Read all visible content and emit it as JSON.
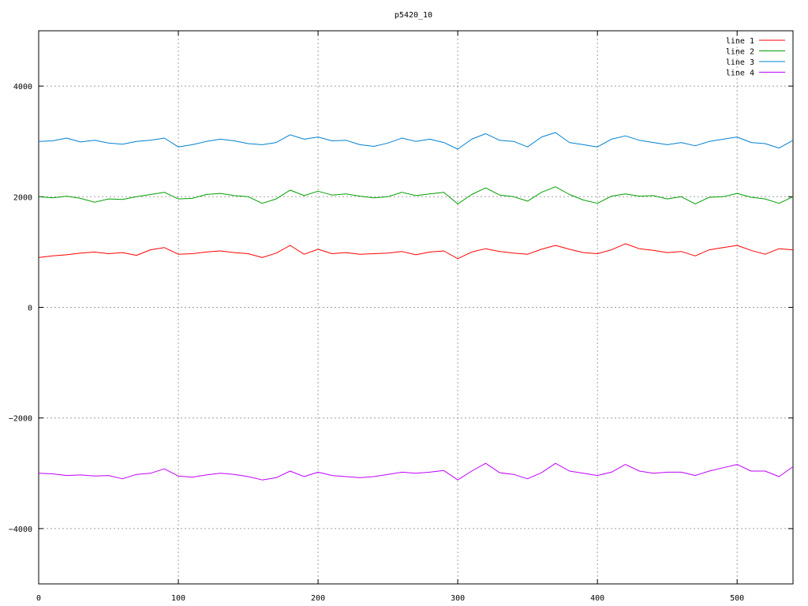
{
  "chart_data": {
    "type": "line",
    "title": "p5420_10",
    "xlabel": "",
    "ylabel": "",
    "xlim": [
      0,
      540
    ],
    "ylim": [
      -5000,
      5000
    ],
    "xticks": [
      0,
      100,
      200,
      300,
      400,
      500
    ],
    "yticks": [
      -4000,
      -2000,
      0,
      2000,
      4000
    ],
    "grid": true,
    "legend_position": "top-right",
    "series": [
      {
        "name": "line 1",
        "color": "#ff0000",
        "x": [
          0,
          10,
          20,
          30,
          40,
          50,
          60,
          70,
          80,
          90,
          100,
          110,
          120,
          130,
          140,
          150,
          160,
          170,
          180,
          190,
          200,
          210,
          220,
          230,
          240,
          250,
          260,
          270,
          280,
          290,
          300,
          310,
          320,
          330,
          340,
          350,
          360,
          370,
          380,
          390,
          400,
          410,
          420,
          430,
          440,
          450,
          460,
          470,
          480,
          490,
          500,
          510,
          520,
          530,
          540
        ],
        "y": [
          900,
          930,
          950,
          980,
          1000,
          970,
          990,
          940,
          1040,
          1080,
          960,
          970,
          1000,
          1020,
          990,
          970,
          900,
          980,
          1120,
          960,
          1050,
          970,
          990,
          960,
          970,
          980,
          1010,
          950,
          1000,
          1020,
          880,
          1000,
          1060,
          1010,
          980,
          960,
          1050,
          1120,
          1050,
          990,
          970,
          1040,
          1150,
          1060,
          1030,
          990,
          1010,
          930,
          1040,
          1080,
          1120,
          1030,
          960,
          1060,
          1040
        ]
      },
      {
        "name": "line 2",
        "color": "#00a000",
        "x": [
          0,
          10,
          20,
          30,
          40,
          50,
          60,
          70,
          80,
          90,
          100,
          110,
          120,
          130,
          140,
          150,
          160,
          170,
          180,
          190,
          200,
          210,
          220,
          230,
          240,
          250,
          260,
          270,
          280,
          290,
          300,
          310,
          320,
          330,
          340,
          350,
          360,
          370,
          380,
          390,
          400,
          410,
          420,
          430,
          440,
          450,
          460,
          470,
          480,
          490,
          500,
          510,
          520,
          530,
          540
        ],
        "y": [
          2000,
          1980,
          2010,
          1970,
          1900,
          1960,
          1950,
          2000,
          2040,
          2080,
          1960,
          1970,
          2040,
          2060,
          2020,
          2000,
          1880,
          1960,
          2120,
          2020,
          2100,
          2030,
          2050,
          2010,
          1980,
          2000,
          2080,
          2020,
          2050,
          2080,
          1870,
          2040,
          2160,
          2030,
          2000,
          1920,
          2080,
          2180,
          2040,
          1940,
          1880,
          2010,
          2050,
          2010,
          2020,
          1960,
          2000,
          1870,
          1990,
          2000,
          2060,
          1990,
          1960,
          1880,
          2000
        ]
      },
      {
        "name": "line 3",
        "color": "#0080d0",
        "x": [
          0,
          10,
          20,
          30,
          40,
          50,
          60,
          70,
          80,
          90,
          100,
          110,
          120,
          130,
          140,
          150,
          160,
          170,
          180,
          190,
          200,
          210,
          220,
          230,
          240,
          250,
          260,
          270,
          280,
          290,
          300,
          310,
          320,
          330,
          340,
          350,
          360,
          370,
          380,
          390,
          400,
          410,
          420,
          430,
          440,
          450,
          460,
          470,
          480,
          490,
          500,
          510,
          520,
          530,
          540
        ],
        "y": [
          3000,
          3010,
          3060,
          2990,
          3020,
          2970,
          2950,
          3000,
          3020,
          3060,
          2900,
          2940,
          3000,
          3040,
          3010,
          2960,
          2940,
          2980,
          3120,
          3040,
          3080,
          3010,
          3020,
          2940,
          2910,
          2970,
          3060,
          3000,
          3040,
          2980,
          2860,
          3040,
          3140,
          3020,
          3000,
          2900,
          3080,
          3160,
          2980,
          2940,
          2900,
          3040,
          3100,
          3020,
          2980,
          2940,
          2980,
          2920,
          3000,
          3040,
          3080,
          2980,
          2960,
          2880,
          3020
        ]
      },
      {
        "name": "line 4",
        "color": "#c000ff",
        "x": [
          0,
          10,
          20,
          30,
          40,
          50,
          60,
          70,
          80,
          90,
          100,
          110,
          120,
          130,
          140,
          150,
          160,
          170,
          180,
          190,
          200,
          210,
          220,
          230,
          240,
          250,
          260,
          270,
          280,
          290,
          300,
          310,
          320,
          330,
          340,
          350,
          360,
          370,
          380,
          390,
          400,
          410,
          420,
          430,
          440,
          450,
          460,
          470,
          480,
          490,
          500,
          510,
          520,
          530,
          540
        ],
        "y": [
          -3000,
          -3010,
          -3040,
          -3030,
          -3050,
          -3040,
          -3100,
          -3020,
          -3000,
          -2920,
          -3050,
          -3070,
          -3030,
          -3000,
          -3020,
          -3060,
          -3120,
          -3080,
          -2960,
          -3060,
          -2980,
          -3040,
          -3060,
          -3080,
          -3060,
          -3020,
          -2980,
          -3000,
          -2980,
          -2950,
          -3120,
          -2960,
          -2820,
          -2990,
          -3020,
          -3100,
          -2990,
          -2820,
          -2960,
          -3000,
          -3040,
          -2980,
          -2840,
          -2960,
          -3000,
          -2980,
          -2980,
          -3040,
          -2960,
          -2900,
          -2840,
          -2960,
          -2960,
          -3060,
          -2880
        ]
      }
    ]
  }
}
